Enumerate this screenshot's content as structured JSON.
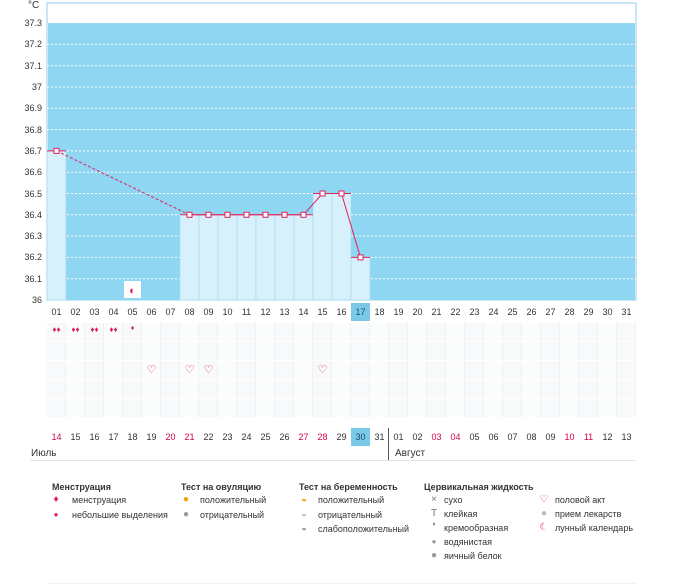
{
  "axis": {
    "unit": "°C",
    "ticks": [
      "37.3",
      "37.2",
      "37.1",
      "37",
      "36.9",
      "36.8",
      "36.7",
      "36.6",
      "36.5",
      "36.4",
      "36.3",
      "36.2",
      "36.1",
      "36"
    ]
  },
  "chart_data": {
    "type": "line",
    "ylabel": "°C",
    "ylim": [
      36.0,
      37.3
    ],
    "cover_line": 37.3,
    "x": [
      "01",
      "02",
      "03",
      "04",
      "05",
      "06",
      "07",
      "08",
      "09",
      "10",
      "11",
      "12",
      "13",
      "14",
      "15",
      "16",
      "17"
    ],
    "points": [
      {
        "day": 1,
        "value": 36.7
      },
      {
        "day": 8,
        "value": 36.4
      },
      {
        "day": 9,
        "value": 36.4
      },
      {
        "day": 10,
        "value": 36.4
      },
      {
        "day": 11,
        "value": 36.4
      },
      {
        "day": 12,
        "value": 36.4
      },
      {
        "day": 13,
        "value": 36.4
      },
      {
        "day": 14,
        "value": 36.4
      },
      {
        "day": 15,
        "value": 36.5
      },
      {
        "day": 16,
        "value": 36.5
      },
      {
        "day": 17,
        "value": 36.2
      }
    ],
    "dashed_segment": [
      1,
      8
    ],
    "selected_day": 17
  },
  "cycle_days": [
    "01",
    "02",
    "03",
    "04",
    "05",
    "06",
    "07",
    "08",
    "09",
    "10",
    "11",
    "12",
    "13",
    "14",
    "15",
    "16",
    "17",
    "18",
    "19",
    "20",
    "21",
    "22",
    "23",
    "24",
    "25",
    "26",
    "27",
    "28",
    "29",
    "30",
    "31"
  ],
  "markers": {
    "menstruation": [
      1,
      2,
      3,
      4
    ],
    "light_discharge": [
      5
    ],
    "sex": [
      6,
      8,
      9,
      15
    ],
    "moon": [
      5
    ]
  },
  "dates": {
    "values": [
      "14",
      "15",
      "16",
      "17",
      "18",
      "19",
      "20",
      "21",
      "22",
      "23",
      "24",
      "25",
      "26",
      "27",
      "28",
      "29",
      "30",
      "31",
      "01",
      "02",
      "03",
      "04",
      "05",
      "06",
      "07",
      "08",
      "09",
      "10",
      "11",
      "12",
      "13"
    ],
    "red_indexes": [
      0,
      6,
      7,
      13,
      14,
      20,
      21,
      27,
      28
    ],
    "selected_index": 16,
    "month_left": "Июль",
    "month_right": "Август"
  },
  "legend": {
    "menstruation": {
      "title": "Менструация",
      "items": [
        "менструация",
        "небольшие выделения"
      ]
    },
    "ovulation": {
      "title": "Тест на овуляцию",
      "items": [
        "положительный",
        "отрицательный"
      ]
    },
    "pregnancy": {
      "title": "Тест на беременность",
      "items": [
        "положительный",
        "отрицательный",
        "слабоположительный"
      ]
    },
    "cervical": {
      "title": "Цервикальная жидкость",
      "items": [
        "сухо",
        "клейкая",
        "кремообразная",
        "водянистая",
        "яичный белок"
      ]
    },
    "other": {
      "items": [
        "половой акт",
        "прием лекарств",
        "лунный календарь"
      ]
    }
  },
  "colors": {
    "fill": "#8fd6f3",
    "bar": "#d6f0fc",
    "line": "#e0225a",
    "red": "#d6004f",
    "select": "#7bc9e8"
  }
}
